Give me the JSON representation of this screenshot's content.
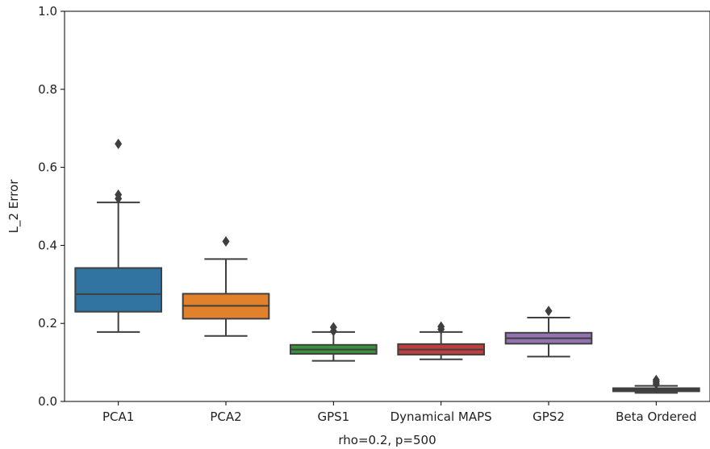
{
  "chart_data": {
    "type": "box",
    "xlabel": "rho=0.2, p=500",
    "ylabel": "L_2 Error",
    "ylim": [
      0.0,
      1.0
    ],
    "yticks": [
      "0.0",
      "0.2",
      "0.4",
      "0.6",
      "0.8",
      "1.0"
    ],
    "grid": false,
    "categories": [
      "PCA1",
      "PCA2",
      "GPS1",
      "Dynamical MAPS",
      "GPS2",
      "Beta Ordered"
    ],
    "boxes": [
      {
        "name": "PCA1",
        "color": "#3274a1",
        "whisker_low": 0.178,
        "q1": 0.23,
        "median": 0.275,
        "q3": 0.342,
        "whisker_high": 0.51,
        "outliers": [
          0.52,
          0.53,
          0.66
        ]
      },
      {
        "name": "PCA2",
        "color": "#e1812c",
        "whisker_low": 0.168,
        "q1": 0.212,
        "median": 0.245,
        "q3": 0.276,
        "whisker_high": 0.365,
        "outliers": [
          0.41
        ]
      },
      {
        "name": "GPS1",
        "color": "#3a923a",
        "whisker_low": 0.104,
        "q1": 0.122,
        "median": 0.133,
        "q3": 0.145,
        "whisker_high": 0.178,
        "outliers": [
          0.18,
          0.19
        ]
      },
      {
        "name": "Dynamical MAPS",
        "color": "#c03d3e",
        "whisker_low": 0.108,
        "q1": 0.12,
        "median": 0.133,
        "q3": 0.147,
        "whisker_high": 0.178,
        "outliers": [
          0.185,
          0.192
        ]
      },
      {
        "name": "GPS2",
        "color": "#9372b2",
        "whisker_low": 0.115,
        "q1": 0.148,
        "median": 0.162,
        "q3": 0.176,
        "whisker_high": 0.215,
        "outliers": [
          0.232
        ]
      },
      {
        "name": "Beta Ordered",
        "color": "#845b53",
        "whisker_low": 0.022,
        "q1": 0.026,
        "median": 0.03,
        "q3": 0.034,
        "whisker_high": 0.04,
        "outliers": [
          0.045,
          0.05,
          0.055
        ]
      }
    ]
  }
}
